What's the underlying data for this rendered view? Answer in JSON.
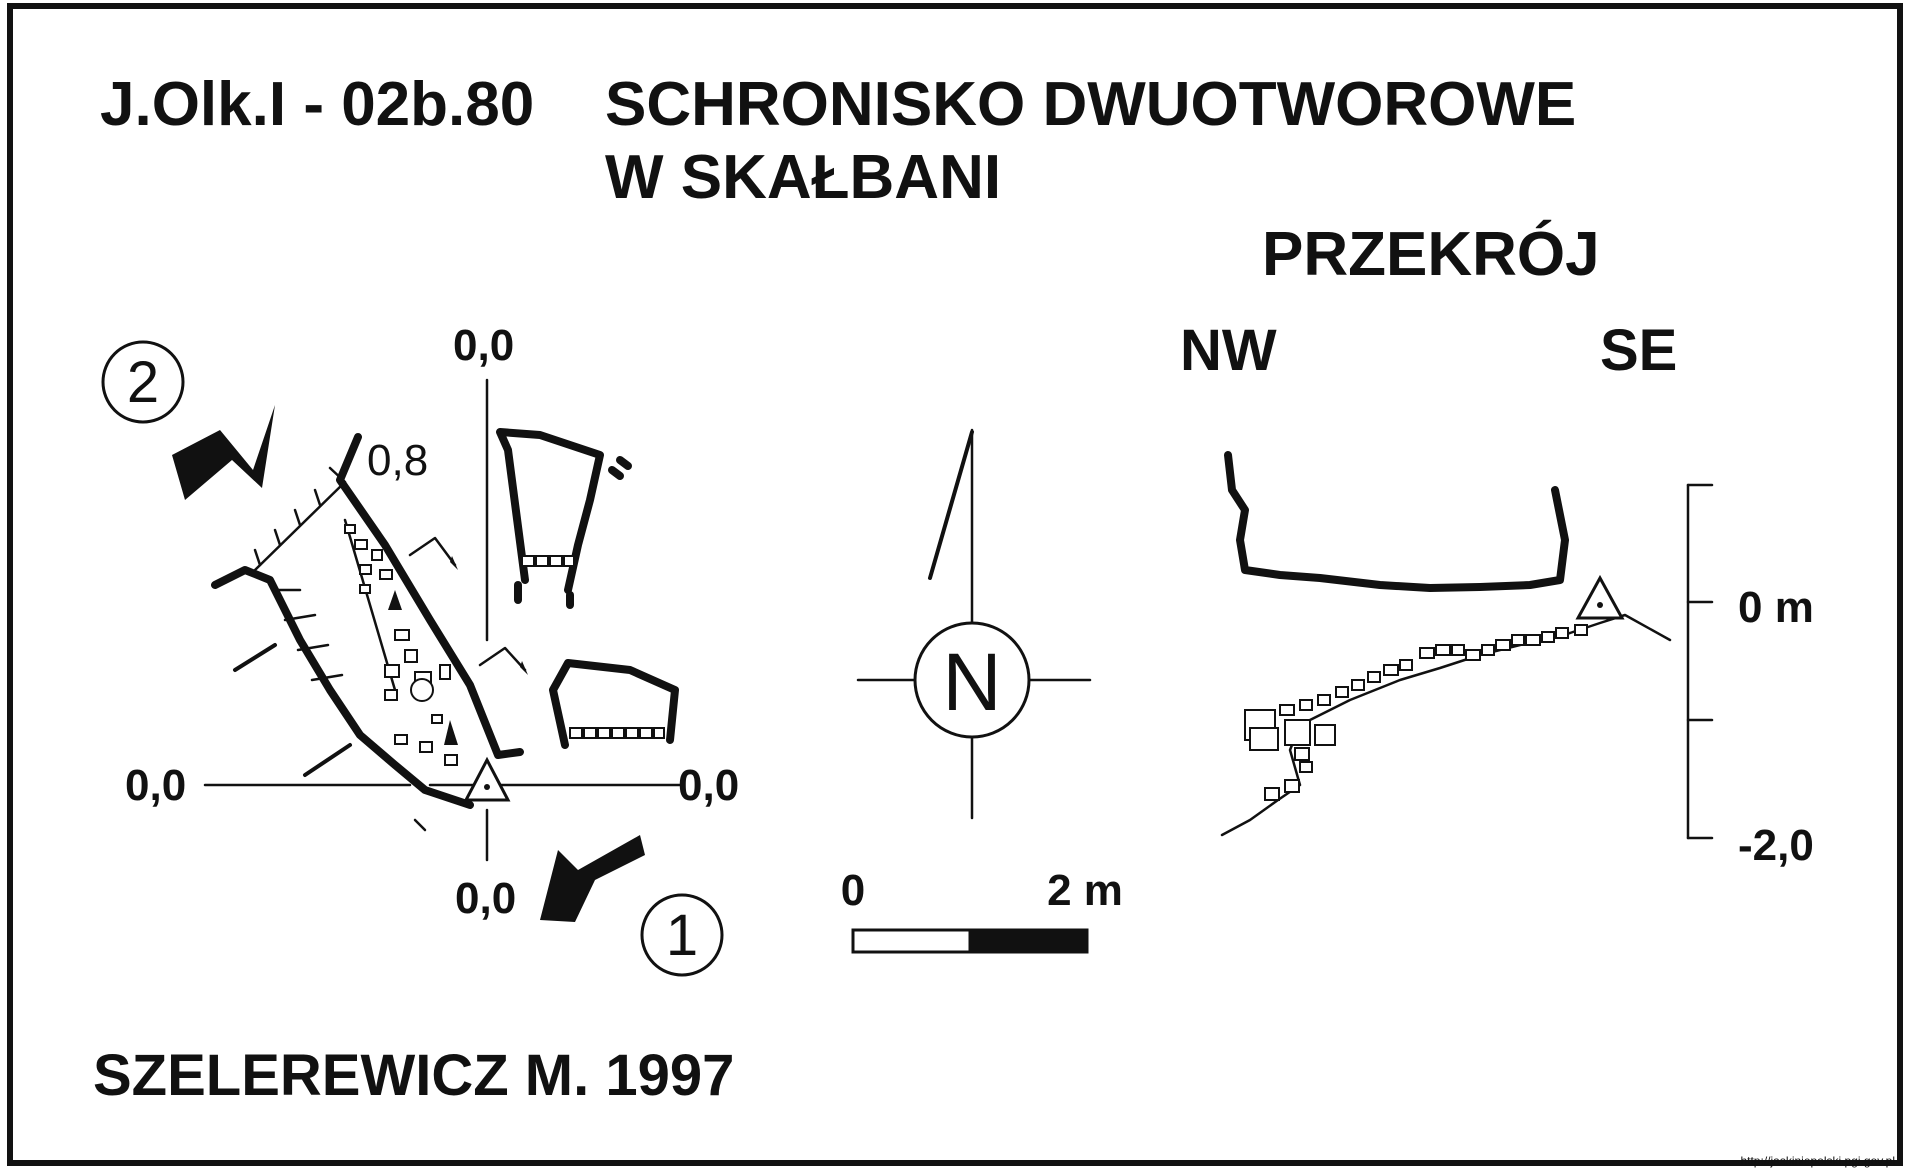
{
  "header": {
    "code": "J.Olk.I - 02b.80",
    "title_line1": "SCHRONISKO DWUOTWOROWE",
    "title_line2": "W SKAŁBANI"
  },
  "plan": {
    "entrance_1": "1",
    "entrance_2": "2",
    "depth_top": "0,0",
    "depth_left": "0,0",
    "depth_right": "0,0",
    "depth_bottom": "0,0",
    "height_label": "0,8"
  },
  "compass": {
    "north_letter": "N"
  },
  "scale_bar": {
    "start_label": "0",
    "end_label": "2 m"
  },
  "section": {
    "title": "PRZEKRÓJ",
    "left_dir": "NW",
    "right_dir": "SE",
    "scale_top": "0 m",
    "scale_bottom": "-2,0"
  },
  "author": "SZELEREWICZ M. 1997",
  "source_url": "http://jaskiniepolski.pgi.gov.pl"
}
